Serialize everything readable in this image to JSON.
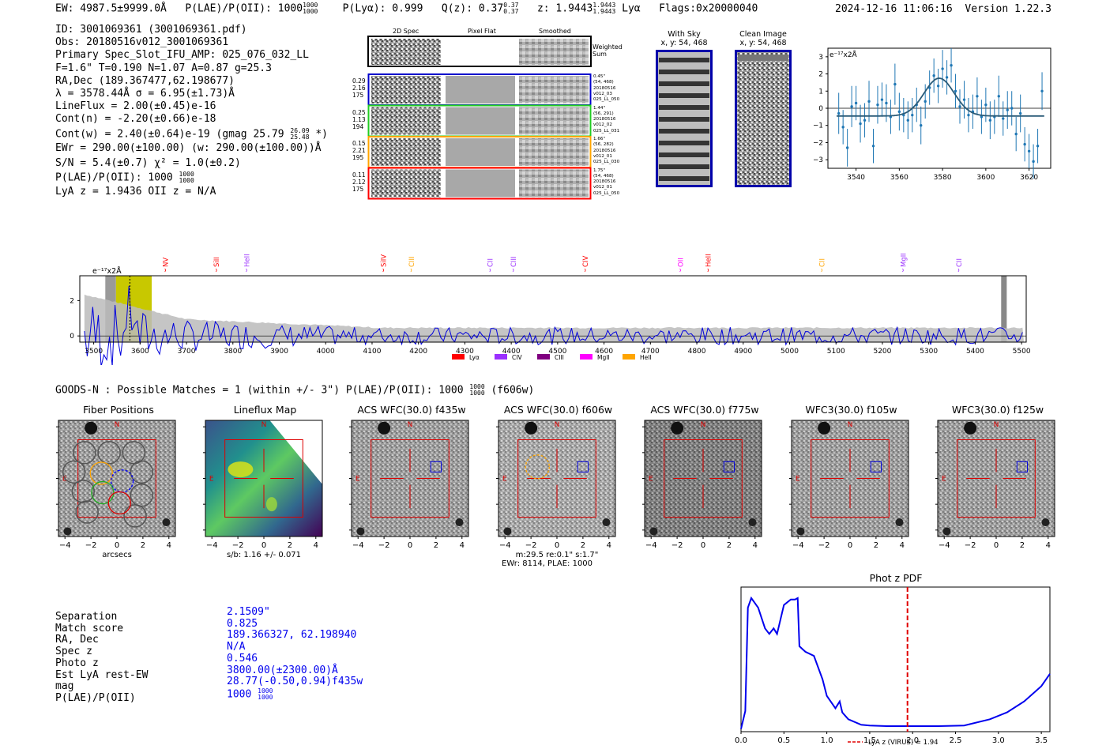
{
  "header": {
    "ew": "EW: 4987.5±9999.0Å",
    "plae_label": "P(LAE)/P(OII): 1000",
    "plae_hi": "1000",
    "plae_lo": "1000",
    "plya": "P(Lyα): 0.999",
    "qz_label": "Q(z): 0.37",
    "qz_hi": "0.37",
    "qz_lo": "0.37",
    "z_label": "z: 1.9443",
    "z_hi": "1.9443",
    "z_lo": "1.9443",
    "z_line": "Lyα",
    "flags": "Flags:0x20000040",
    "timestamp": "2024-12-16 11:06:16",
    "version": "Version 1.22.3"
  },
  "info": {
    "lines": [
      "ID: 3001069361 (3001069361.pdf)",
      "Obs: 20180516v012_3001069361",
      "Primary Spec_Slot_IFU_AMP: 025_076_032_LL",
      "F=1.6\"  T=0.190  N=1.07  A=0.87  g=25.3",
      "RA,Dec (189.367477,62.198677)",
      "λ = 3578.44Å   σ = 6.95(±1.73)Å",
      "LineFlux = 2.00(±0.45)e-16",
      "Cont(n) = -2.20(±0.66)e-18"
    ],
    "contw": "Cont(w) = 2.40(±0.64)e-19 (gmag 25.79",
    "contw_hi": "26.09",
    "contw_lo": "25.48",
    "contw_end": "*)",
    "ewr": "EWr = 290.00(±100.00) (w: 290.00(±100.00))Å",
    "sn": "S/N = 5.4(±0.7)  χ² = 1.0(±0.2)",
    "plae": "P(LAE)/P(OII): 1000",
    "plae_hi": "1000",
    "plae_lo": "1000",
    "lyaz": "LyA z = 1.9436  OII z = N/A"
  },
  "cutouts": {
    "col_2d": "2D Spec",
    "col_flat": "Pixel Flat",
    "col_smooth": "Smoothed",
    "weighted": "Weighted Sum",
    "rows": [
      {
        "left": [
          "0.29",
          "2.16",
          "175"
        ],
        "right": [
          "0.45\"",
          "(54, 468)",
          "20180516",
          "v012_03",
          "025_LL_050"
        ],
        "color": "#0000cc"
      },
      {
        "left": [
          "0.25",
          "1.13",
          "194"
        ],
        "right": [
          "1.44\"",
          "(56, 291)",
          "20180516",
          "v012_02",
          "025_LL_031"
        ],
        "color": "#22cc22"
      },
      {
        "left": [
          "0.15",
          "2.21",
          "195"
        ],
        "right": [
          "1.66\"",
          "(56, 282)",
          "20180516",
          "v012_01",
          "025_LL_030"
        ],
        "color": "#ffa500"
      },
      {
        "left": [
          "0.11",
          "2.12",
          "175"
        ],
        "right": [
          "1.75\"",
          "(54, 468)",
          "20180516",
          "v012_01",
          "025_LL_050"
        ],
        "color": "#ff0000"
      }
    ],
    "with_sky": "With Sky",
    "with_sky_xy": "x, y: 54, 468",
    "clean": "Clean Image",
    "clean_xy": "x, y: 54, 468"
  },
  "zoom_chart": {
    "ylabel": "e⁻¹⁷x2Å",
    "xticks": [
      "3540",
      "3560",
      "3580",
      "3600",
      "3620"
    ],
    "yticks": [
      "3",
      "2",
      "1",
      "0",
      "−1",
      "−2",
      "−3"
    ]
  },
  "spectrum": {
    "ylabel": "e⁻¹⁷x2Å",
    "xticks": [
      "3500",
      "3600",
      "3700",
      "3800",
      "3900",
      "4000",
      "4100",
      "4200",
      "4300",
      "4400",
      "4500",
      "4600",
      "4700",
      "4800",
      "4900",
      "5000",
      "5100",
      "5200",
      "5300",
      "5400",
      "5500"
    ],
    "yticks": [
      "2",
      "0"
    ],
    "lines": [
      {
        "label": "NV",
        "color": "#ff0000",
        "w": 3655
      },
      {
        "label": "SiII",
        "color": "#ff0000",
        "w": 3765
      },
      {
        "label": "HeII",
        "color": "#9b30ff",
        "w": 3830
      },
      {
        "label": "SiIV",
        "color": "#ff0000",
        "w": 4125
      },
      {
        "label": "CIII",
        "color": "#ffa500",
        "w": 4185
      },
      {
        "label": "CII",
        "color": "#9b30ff",
        "w": 4355
      },
      {
        "label": "CIII",
        "color": "#9b30ff",
        "w": 4405
      },
      {
        "label": "CIV",
        "color": "#ff0000",
        "w": 4560
      },
      {
        "label": "OII",
        "color": "#ff00ff",
        "w": 4765
      },
      {
        "label": "HeII",
        "color": "#ff0000",
        "w": 4825
      },
      {
        "label": "CII",
        "color": "#ffa500",
        "w": 5070
      },
      {
        "label": "MgII",
        "color": "#9b30ff",
        "w": 5245
      },
      {
        "label": "CII",
        "color": "#9b30ff",
        "w": 5365
      }
    ],
    "legend": [
      {
        "label": "Lyα",
        "color": "#ff0000"
      },
      {
        "label": "CIV",
        "color": "#9b30ff"
      },
      {
        "label": "CIII",
        "color": "#800080"
      },
      {
        "label": "MgII",
        "color": "#ff00ff"
      },
      {
        "label": "HeII",
        "color": "#ffa500"
      }
    ]
  },
  "catalog": {
    "line": "GOODS-N : Possible Matches = 1 (within +/- 3\")  P(LAE)/P(OII): 1000",
    "hi": "1000",
    "lo": "1000",
    "band": "(f606w)"
  },
  "imaging": {
    "panels": [
      {
        "title": "Fiber Positions",
        "xlabel": "arcsecs"
      },
      {
        "title": "Lineflux Map",
        "xlabel": "s/b: 1.16 +/- 0.071"
      },
      {
        "title": "ACS WFC(30.0) f435w",
        "xlabel": ""
      },
      {
        "title": "ACS WFC(30.0) f606w",
        "xlabel": "m:29.5  re:0.1\"  s:1.7\""
      },
      {
        "title": "ACS WFC(30.0) f775w",
        "xlabel": ""
      },
      {
        "title": "WFC3(30.0) f105w",
        "xlabel": ""
      },
      {
        "title": "WFC3(30.0) f125w",
        "xlabel": ""
      }
    ],
    "f606_extra": "EWr: 8114, PLAE: 1000",
    "ticks": [
      "−4",
      "−2",
      "0",
      "2",
      "4"
    ],
    "n_label": "N",
    "e_label": "E"
  },
  "match": {
    "labels": [
      "Separation",
      "Match score",
      "RA, Dec",
      "Spec z",
      "Photo z",
      "Est LyA rest-EW",
      "mag",
      "P(LAE)/P(OII)"
    ],
    "values": [
      "2.1509\"",
      "0.825",
      "189.366327, 62.198940",
      "N/A",
      "0.546",
      "3800.00(±2300.00)Å",
      "28.77(-0.50,0.94)f435w",
      "1000"
    ],
    "plae_hi": "1000",
    "plae_lo": "1000"
  },
  "chart_data": [
    {
      "type": "line",
      "title": "Phot z PDF",
      "xlabel": "",
      "ylabel": "",
      "xlim": [
        0.0,
        3.6
      ],
      "xticks": [
        "0.0",
        "0.5",
        "1.0",
        "1.5",
        "2.0",
        "2.5",
        "3.0",
        "3.5"
      ],
      "x": [
        0.0,
        0.05,
        0.08,
        0.12,
        0.2,
        0.28,
        0.33,
        0.38,
        0.42,
        0.5,
        0.58,
        0.63,
        0.66,
        0.68,
        0.75,
        0.85,
        0.95,
        1.0,
        1.1,
        1.15,
        1.18,
        1.25,
        1.4,
        1.5,
        1.7,
        2.0,
        2.3,
        2.6,
        2.9,
        3.1,
        3.3,
        3.5,
        3.6
      ],
      "y": [
        0.02,
        0.15,
        0.9,
        0.97,
        0.9,
        0.75,
        0.71,
        0.75,
        0.71,
        0.92,
        0.96,
        0.96,
        0.97,
        0.62,
        0.58,
        0.55,
        0.38,
        0.26,
        0.17,
        0.22,
        0.14,
        0.09,
        0.05,
        0.045,
        0.04,
        0.04,
        0.04,
        0.045,
        0.09,
        0.14,
        0.22,
        0.33,
        0.42
      ],
      "ylim": [
        0,
        1.05
      ],
      "vline": {
        "x": 1.94,
        "color": "#e00000",
        "label": "LyA z (VIRUS) = 1.94"
      }
    },
    {
      "type": "scatter",
      "title": "Line zoom",
      "x": [
        3532,
        3534,
        3536,
        3538,
        3540,
        3542,
        3544,
        3546,
        3548,
        3550,
        3552,
        3554,
        3556,
        3558,
        3560,
        3562,
        3564,
        3566,
        3568,
        3570,
        3572,
        3574,
        3576,
        3578,
        3580,
        3582,
        3584,
        3586,
        3588,
        3590,
        3592,
        3594,
        3596,
        3598,
        3600,
        3602,
        3604,
        3606,
        3608,
        3610,
        3612,
        3614,
        3616,
        3618,
        3620,
        3622,
        3624,
        3626
      ],
      "y": [
        -0.3,
        -1.1,
        -2.3,
        0.1,
        0.3,
        -0.9,
        -0.7,
        0.4,
        -2.2,
        0.2,
        0.5,
        0.3,
        -0.5,
        1.4,
        -0.2,
        -0.4,
        -0.7,
        -0.4,
        0.2,
        -1.0,
        0.4,
        1.2,
        1.9,
        1.3,
        2.3,
        1.8,
        2.5,
        1.0,
        0.1,
        0.5,
        -0.4,
        -0.2,
        0.7,
        -0.5,
        0.2,
        -0.7,
        -0.5,
        0.7,
        -0.6,
        -0.1,
        0.0,
        -1.5,
        -0.3,
        -2.1,
        -2.5,
        -3.1,
        -2.2,
        1.0
      ],
      "err": [
        1.2,
        1.0,
        1.1,
        1.2,
        1.0,
        1.1,
        1.0,
        1.2,
        1.0,
        1.1,
        1.0,
        1.1,
        1.0,
        1.2,
        1.1,
        1.0,
        1.1,
        1.0,
        1.0,
        1.1,
        1.0,
        1.0,
        1.0,
        1.0,
        1.1,
        1.0,
        1.0,
        1.0,
        1.0,
        1.1,
        1.0,
        1.0,
        1.1,
        1.0,
        1.0,
        1.1,
        1.0,
        1.2,
        1.0,
        1.1,
        1.0,
        1.0,
        1.1,
        1.0,
        1.0,
        1.0,
        1.0,
        1.1
      ],
      "fit_center": 3578.44,
      "fit_sigma": 6.95,
      "fit_amp": 2.2,
      "fit_base": -0.45,
      "xlim": [
        3527,
        3630
      ],
      "ylim": [
        -3.5,
        3.5
      ]
    }
  ]
}
